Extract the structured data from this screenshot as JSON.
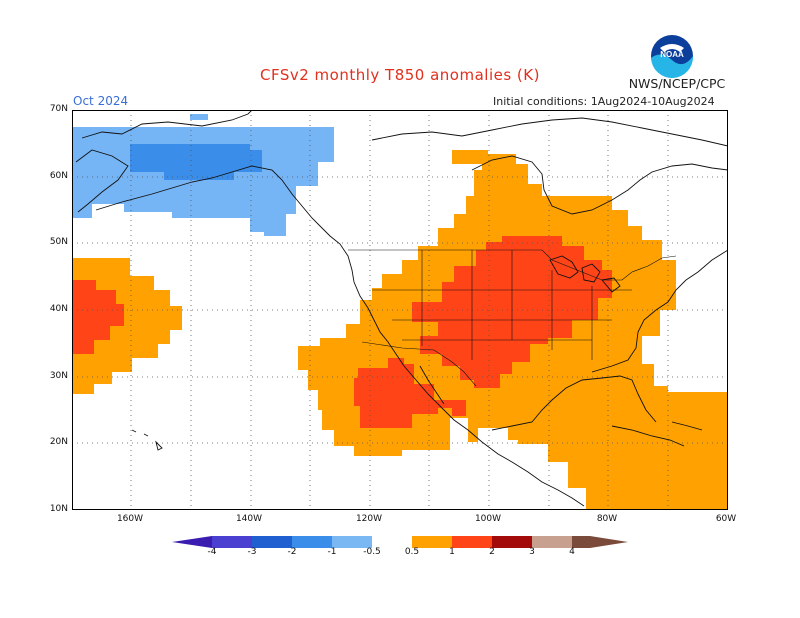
{
  "header": {
    "title": "CFSv2 monthly T850 anomalies (K)",
    "agency": "NWS/NCEP/CPC",
    "month": "Oct 2024",
    "initial_conditions": "Initial conditions: 1Aug2024-10Aug2024",
    "logo_text": "NOAA"
  },
  "axes": {
    "lat_labels": [
      "70N",
      "60N",
      "50N",
      "40N",
      "30N",
      "20N",
      "10N"
    ],
    "lon_labels": [
      "160W",
      "140W",
      "120W",
      "100W",
      "80W",
      "60W"
    ]
  },
  "legend": {
    "labels": [
      "-4",
      "-3",
      "-2",
      "-1",
      "-0.5",
      "0.5",
      "1",
      "2",
      "3",
      "4"
    ],
    "colors": {
      "lt_-4": "#3a1cb0",
      "-4_-3": "#4a3fd0",
      "-3_-2": "#1f5fd0",
      "-2_-1": "#3a8de8",
      "-1_-0.5": "#7ab8f4",
      "-0.5_0.5": "#ffffff",
      "0.5_1": "#ffa100",
      "1_2": "#ff4418",
      "2_3": "#ff2a00",
      "3_4": "#a30a0a",
      "4_5": "#c8a090",
      "gt_5": "#7a4a3a"
    }
  },
  "map_colors": {
    "neg_0.5_1": "#75b5f5",
    "neg_1_2": "#3a8de8",
    "pos_0.5_1": "#ffa100",
    "pos_1_2": "#ff4418"
  }
}
